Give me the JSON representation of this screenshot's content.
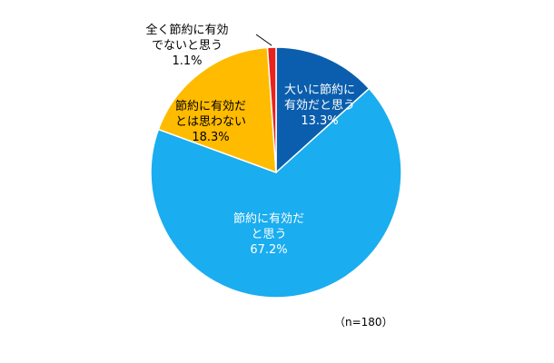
{
  "chart_data": {
    "type": "pie",
    "title": "",
    "slices": [
      {
        "label": [
          "大いに節約に",
          "有効だと思う"
        ],
        "value": 13.3,
        "value_label": "13.3%",
        "color": "#0B5EAD",
        "text_color": "#ffffff",
        "inside": true
      },
      {
        "label": [
          "節約に有効だ",
          "と思う"
        ],
        "value": 67.2,
        "value_label": "67.2%",
        "color": "#1AADEF",
        "text_color": "#ffffff",
        "inside": true
      },
      {
        "label": [
          "節約に有効だ",
          "とは思わない"
        ],
        "value": 18.3,
        "value_label": "18.3%",
        "color": "#FFBB00",
        "text_color": "#000000",
        "inside": true
      },
      {
        "label": [
          "全く節約に有効",
          "でないと思う"
        ],
        "value": 1.1,
        "value_label": "1.1%",
        "color": "#E8231C",
        "text_color": "#000000",
        "inside": false
      }
    ],
    "start_angle": "12 o'clock",
    "direction": "clockwise",
    "legend": "none"
  },
  "sample_note": "（n=180）"
}
